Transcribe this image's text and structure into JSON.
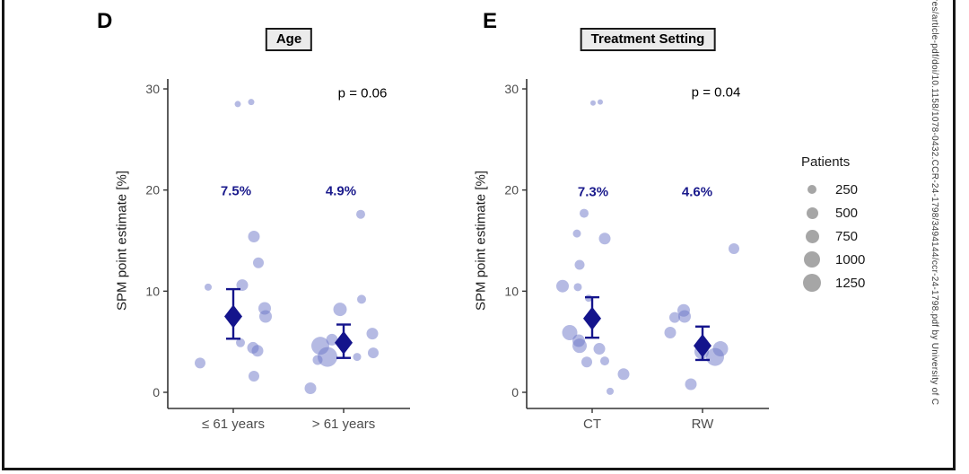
{
  "figure": {
    "sidebar_text": "res/article-pdf/doi/10.1158/1078-0432.CCR-24-1798/3494144/ccr-24-1798.pdf by University of C",
    "legend": {
      "title": "Patients",
      "entries": [
        {
          "label": "250",
          "r": 5
        },
        {
          "label": "500",
          "r": 6.5
        },
        {
          "label": "750",
          "r": 7.5
        },
        {
          "label": "1000",
          "r": 9
        },
        {
          "label": "1250",
          "r": 10
        }
      ]
    },
    "colors": {
      "bubble": "#6b76c7",
      "estimate": "#14148c",
      "label_navy": "#1a1a8c",
      "axis_text": "#4d4d4d",
      "axis_line": "#333333",
      "legend_bubble": "#a6a6a6",
      "title_box_bg": "#ebebeb"
    }
  },
  "chart_data": [
    {
      "type": "scatter",
      "panel": "D",
      "title": "Age",
      "p_label": "p = 0.06",
      "ylabel": "SPM point estimate [%]",
      "yticks": [
        0,
        10,
        20,
        30
      ],
      "ylim": [
        0,
        30
      ],
      "legend_position": "right",
      "groups": [
        {
          "label": "≤ 61 years",
          "estimate_label": "7.5%",
          "estimate": 7.5,
          "ci_low": 5.3,
          "ci_high": 10.2,
          "points": [
            {
              "y": 28.5,
              "dx": 5,
              "r": 3.5
            },
            {
              "y": 28.7,
              "dx": 20,
              "r": 3.5
            },
            {
              "y": 15.4,
              "dx": 23,
              "r": 6.5
            },
            {
              "y": 12.8,
              "dx": 28,
              "r": 6
            },
            {
              "y": 10.4,
              "dx": -28,
              "r": 4
            },
            {
              "y": 10.6,
              "dx": 10,
              "r": 6.5
            },
            {
              "y": 8.3,
              "dx": 35,
              "r": 7
            },
            {
              "y": 7.5,
              "dx": 36,
              "r": 7
            },
            {
              "y": 4.9,
              "dx": 8,
              "r": 5
            },
            {
              "y": 4.4,
              "dx": 22,
              "r": 6.5
            },
            {
              "y": 4.1,
              "dx": 27,
              "r": 6.5
            },
            {
              "y": 2.9,
              "dx": -37,
              "r": 6
            },
            {
              "y": 1.6,
              "dx": 23,
              "r": 6
            }
          ]
        },
        {
          "label": "> 61 years",
          "estimate_label": "4.9%",
          "estimate": 4.9,
          "ci_low": 3.4,
          "ci_high": 6.7,
          "points": [
            {
              "y": 17.6,
              "dx": 19,
              "r": 5
            },
            {
              "y": 9.2,
              "dx": 20,
              "r": 5
            },
            {
              "y": 8.2,
              "dx": -4,
              "r": 7.5
            },
            {
              "y": 5.8,
              "dx": 32,
              "r": 6.5
            },
            {
              "y": 5.2,
              "dx": -13,
              "r": 6.5
            },
            {
              "y": 4.6,
              "dx": -26,
              "r": 10
            },
            {
              "y": 3.5,
              "dx": -18,
              "r": 11
            },
            {
              "y": 3.2,
              "dx": -29,
              "r": 5.5
            },
            {
              "y": 3.5,
              "dx": 15,
              "r": 4.5
            },
            {
              "y": 3.9,
              "dx": 33,
              "r": 6
            },
            {
              "y": 0.4,
              "dx": -37,
              "r": 6.5
            }
          ]
        }
      ]
    },
    {
      "type": "scatter",
      "panel": "E",
      "title": "Treatment Setting",
      "p_label": "p = 0.04",
      "ylabel": "SPM point estimate [%]",
      "yticks": [
        0,
        10,
        20,
        30
      ],
      "ylim": [
        0,
        30
      ],
      "legend_position": "right",
      "groups": [
        {
          "label": "CT",
          "estimate_label": "7.3%",
          "estimate": 7.3,
          "ci_low": 5.4,
          "ci_high": 9.4,
          "points": [
            {
              "y": 28.6,
              "dx": 1,
              "r": 3
            },
            {
              "y": 28.7,
              "dx": 9,
              "r": 3
            },
            {
              "y": 17.7,
              "dx": -9,
              "r": 5
            },
            {
              "y": 15.7,
              "dx": -17,
              "r": 4.5
            },
            {
              "y": 15.2,
              "dx": 14,
              "r": 6.5
            },
            {
              "y": 12.6,
              "dx": -14,
              "r": 5.5
            },
            {
              "y": 10.5,
              "dx": -33,
              "r": 7
            },
            {
              "y": 10.4,
              "dx": -16,
              "r": 4.5
            },
            {
              "y": 9.3,
              "dx": -4,
              "r": 4
            },
            {
              "y": 5.9,
              "dx": -25,
              "r": 8.5
            },
            {
              "y": 5.1,
              "dx": -15,
              "r": 7
            },
            {
              "y": 4.6,
              "dx": -14,
              "r": 8
            },
            {
              "y": 4.3,
              "dx": 8,
              "r": 6.5
            },
            {
              "y": 3.0,
              "dx": -6,
              "r": 6
            },
            {
              "y": 3.1,
              "dx": 14,
              "r": 5
            },
            {
              "y": 1.8,
              "dx": 35,
              "r": 6.5
            },
            {
              "y": 0.1,
              "dx": 20,
              "r": 4
            }
          ]
        },
        {
          "label": "RW",
          "estimate_label": "4.6%",
          "estimate": 4.6,
          "ci_low": 3.2,
          "ci_high": 6.5,
          "points": [
            {
              "y": 14.2,
              "dx": 35,
              "r": 6
            },
            {
              "y": 8.1,
              "dx": -21,
              "r": 7
            },
            {
              "y": 7.4,
              "dx": -31,
              "r": 6
            },
            {
              "y": 7.5,
              "dx": -20,
              "r": 7
            },
            {
              "y": 5.9,
              "dx": -36,
              "r": 6.5
            },
            {
              "y": 4.0,
              "dx": -1,
              "r": 8
            },
            {
              "y": 3.5,
              "dx": 14,
              "r": 10
            },
            {
              "y": 4.3,
              "dx": 20,
              "r": 8.5
            },
            {
              "y": 0.8,
              "dx": -13,
              "r": 6.5
            }
          ]
        }
      ]
    }
  ]
}
